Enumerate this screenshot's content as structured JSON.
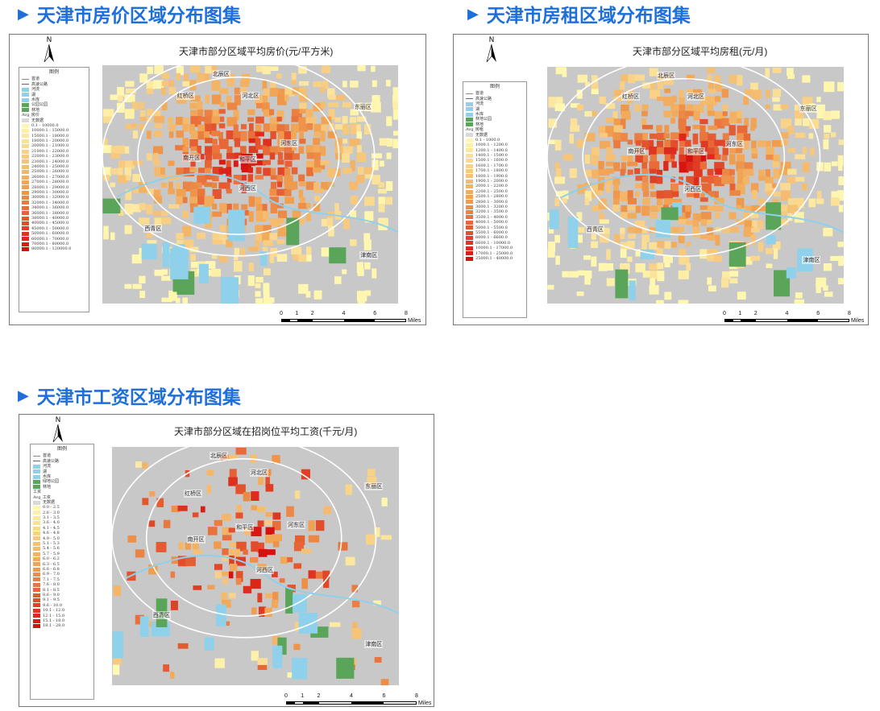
{
  "sections": [
    {
      "heading": "天津市房价区域分布图集",
      "map_title": "天津市部分区域平均房价(元/平方米)",
      "legend": {
        "title": "图例",
        "base": [
          {
            "label": "首道",
            "kind": "line"
          },
          {
            "label": "高速公路",
            "kind": "thick"
          },
          {
            "label": "河流",
            "color": "#8fd0ea"
          },
          {
            "label": "湖",
            "color": "#8fd0ea"
          },
          {
            "label": "水库",
            "color": "#8fd0ea"
          },
          {
            "label": "公园公园",
            "color": "#5aa55a"
          },
          {
            "label": "林地",
            "color": "#5aa55a"
          }
        ],
        "field": "Avg_房价",
        "nodata": "无数据",
        "classes": [
          "0.1 - 10000.0",
          "10000.1 - 15000.0",
          "15000.1 - 18000.0",
          "18000.1 - 20000.0",
          "20000.1 - 21000.0",
          "21000.1 - 22000.0",
          "22000.1 - 23000.0",
          "23000.1 - 24000.0",
          "24000.1 - 25000.0",
          "25000.1 - 26000.0",
          "26000.1 - 27000.0",
          "27000.1 - 28000.0",
          "28000.1 - 29000.0",
          "29000.1 - 30000.0",
          "30000.1 - 32000.0",
          "32000.1 - 34000.0",
          "34000.1 - 36000.0",
          "36000.1 - 38000.0",
          "38000.1 - 40000.0",
          "40000.1 - 45000.0",
          "45000.1 - 50000.0",
          "50000.1 - 60000.0",
          "60000.1 - 70000.0",
          "70000.1 - 80000.0",
          "80000.1 - 120000.0"
        ]
      },
      "districts": [
        "北辰区",
        "红桥区",
        "河北区",
        "东丽区",
        "南开区",
        "河东区",
        "和平区",
        "河西区",
        "西青区",
        "津南区"
      ],
      "scale": {
        "ticks": [
          "0",
          "1",
          "2",
          "4",
          "6",
          "8"
        ],
        "unit": "Miles"
      },
      "north": "N"
    },
    {
      "heading": "天津市房租区域分布图集",
      "map_title": "天津市部分区域平均房租(元/月)",
      "legend": {
        "title": "图例",
        "base": [
          {
            "label": "首道",
            "kind": "line"
          },
          {
            "label": "高速公路",
            "kind": "thick"
          },
          {
            "label": "河流",
            "color": "#8fd0ea"
          },
          {
            "label": "湖",
            "color": "#8fd0ea"
          },
          {
            "label": "水库",
            "color": "#8fd0ea"
          },
          {
            "label": "林地公园",
            "color": "#5aa55a"
          },
          {
            "label": "林地",
            "color": "#5aa55a"
          }
        ],
        "field": "Avg_房租",
        "nodata": "无数据",
        "classes": [
          "0.1 - 1000.0",
          "1000.1 - 1200.0",
          "1200.1 - 1400.0",
          "1400.1 - 1500.0",
          "1500.1 - 1600.0",
          "1600.1 - 1700.0",
          "1700.1 - 1800.0",
          "1800.1 - 1900.0",
          "1900.1 - 2000.0",
          "2000.1 - 2200.0",
          "2200.1 - 2500.0",
          "2500.1 - 2800.0",
          "2800.1 - 3000.0",
          "3000.1 - 3200.0",
          "3200.1 - 3500.0",
          "3500.1 - 4000.0",
          "4000.1 - 5000.0",
          "5000.1 - 5500.0",
          "5500.1 - 6000.0",
          "6000.1 - 6600.0",
          "6600.1 - 10000.0",
          "10000.1 - 17000.0",
          "17000.1 - 25000.0",
          "25000.1 - 40000.0"
        ]
      },
      "districts": [
        "北辰区",
        "红桥区",
        "河北区",
        "东丽区",
        "南开区",
        "河东区",
        "和平区",
        "河西区",
        "西青区",
        "津南区"
      ],
      "scale": {
        "ticks": [
          "0",
          "1",
          "2",
          "4",
          "6",
          "8"
        ],
        "unit": "Miles"
      },
      "north": "N"
    },
    {
      "heading": "天津市工资区域分布图集",
      "map_title": "天津市部分区域在招岗位平均工资(千元/月)",
      "legend": {
        "title": "图例",
        "base": [
          {
            "label": "首道",
            "kind": "line"
          },
          {
            "label": "高速公路",
            "kind": "thick"
          },
          {
            "label": "河流",
            "color": "#8fd0ea"
          },
          {
            "label": "湖",
            "color": "#8fd0ea"
          },
          {
            "label": "水库",
            "color": "#8fd0ea"
          },
          {
            "label": "绿地公园",
            "color": "#5aa55a"
          },
          {
            "label": "林地",
            "color": "#5aa55a"
          }
        ],
        "field": "工资",
        "field2": "Avg_工资",
        "nodata": "无数据",
        "classes": [
          "0.0 - 2.5",
          "2.6 - 3.0",
          "3.1 - 3.5",
          "3.6 - 4.0",
          "4.1 - 4.5",
          "4.6 - 4.8",
          "4.9 - 5.0",
          "5.1 - 5.3",
          "5.4 - 5.6",
          "5.7 - 5.9",
          "6.0 - 6.2",
          "6.3 - 6.5",
          "6.6 - 6.8",
          "6.9 - 7.0",
          "7.1 - 7.5",
          "7.6 - 8.0",
          "8.1 - 8.5",
          "8.6 - 9.0",
          "9.1 - 9.5",
          "9.6 - 10.0",
          "10.1 - 12.0",
          "12.1 - 15.0",
          "15.1 - 18.0",
          "18.1 - 28.0"
        ]
      },
      "districts": [
        "北辰区",
        "河北区",
        "红桥区",
        "东丽区",
        "南开区",
        "和平区",
        "河东区",
        "河西区",
        "西青区",
        "津南区"
      ],
      "scale": {
        "ticks": [
          "0",
          "1",
          "2",
          "4",
          "6",
          "8"
        ],
        "unit": "Miles"
      },
      "north": "N"
    }
  ],
  "colors": {
    "heading": "#1e6fd9",
    "map_background": "#c8c8c8",
    "water": "#8fd0ea",
    "green": "#5aa55a",
    "nodata": "#d9d9d9",
    "ramp_start": "#fff6b0",
    "ramp_mid": "#f0a050",
    "ramp_end": "#d81010"
  }
}
